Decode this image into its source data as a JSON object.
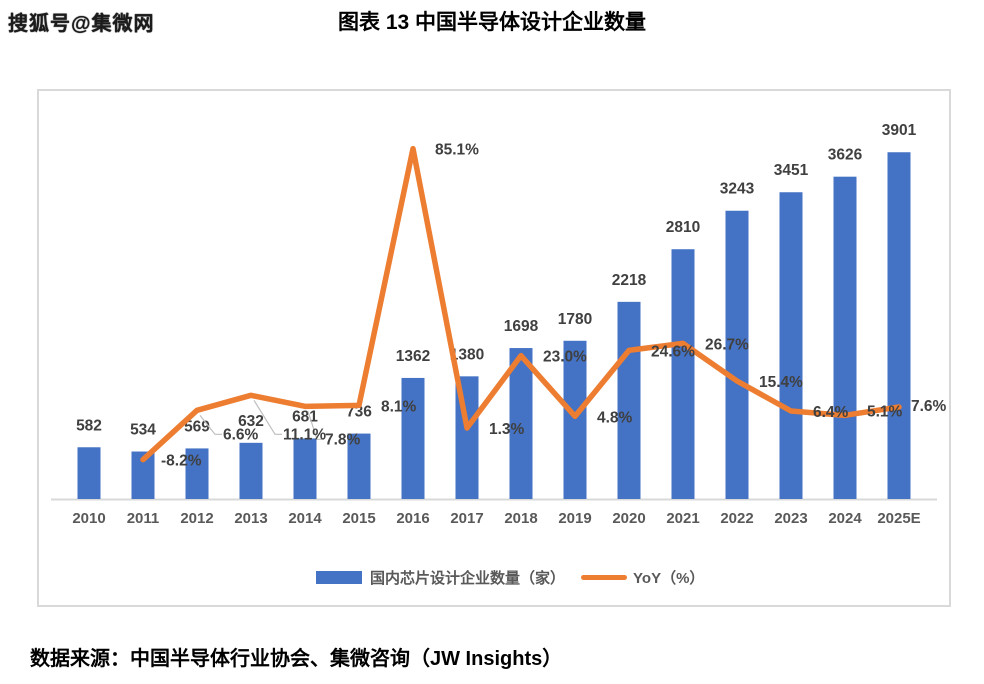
{
  "watermark": "搜狐号@集微网",
  "title": "图表 13 中国半导体设计企业数量",
  "source": "数据来源：中国半导体行业协会、集微咨询（JW Insights）",
  "legend": {
    "bar_label": "国内芯片设计企业数量（家）",
    "line_label": "YoY（%）"
  },
  "colors": {
    "bar": "#4472C4",
    "line": "#ED7D31",
    "axis": "#D9D9D9",
    "border": "#D9D9D9",
    "data_label": "#404040",
    "tick_label": "#595959",
    "leader": "#BFBFBF"
  },
  "chart_data": {
    "type": "combo-bar-line",
    "title": "图表 13 中国半导体设计企业数量",
    "categories": [
      "2010",
      "2011",
      "2012",
      "2013",
      "2014",
      "2015",
      "2016",
      "2017",
      "2018",
      "2019",
      "2020",
      "2021",
      "2022",
      "2023",
      "2024",
      "2025E"
    ],
    "series": [
      {
        "name": "国内芯片设计企业数量（家）",
        "type": "bar",
        "axis": "primary",
        "values": [
          582,
          534,
          569,
          632,
          681,
          736,
          1362,
          1380,
          1698,
          1780,
          2218,
          2810,
          3243,
          3451,
          3626,
          3901
        ],
        "labels": [
          "582",
          "534",
          "569",
          "632",
          "681",
          "736",
          "1362",
          "1380",
          "1698",
          "1780",
          "2218",
          "2810",
          "3243",
          "3451",
          "3626",
          "3901"
        ]
      },
      {
        "name": "YoY（%）",
        "type": "line",
        "axis": "secondary",
        "values": [
          null,
          -8.2,
          6.6,
          11.1,
          7.8,
          8.1,
          85.1,
          1.3,
          23.0,
          4.8,
          24.6,
          26.7,
          15.4,
          6.4,
          5.1,
          7.6
        ],
        "labels": [
          "",
          "-8.2%",
          "6.6%",
          "11.1%",
          "7.8%",
          "8.1%",
          "85.1%",
          "1.3%",
          "23.0%",
          "4.8%",
          "24.6%",
          "26.7%",
          "15.4%",
          "6.4%",
          "5.1%",
          "7.6%"
        ]
      }
    ],
    "ylim_primary": [
      0,
      4500
    ],
    "ylim_secondary": [
      -20,
      100
    ],
    "grid": false,
    "legend_position": "bottom",
    "yoy_label_offsets": {
      "1": [
        18,
        6
      ],
      "2": [
        26,
        29
      ],
      "3": [
        32,
        44
      ],
      "4": [
        20,
        38
      ],
      "14": [
        22,
        1
      ],
      "15": [
        12,
        4
      ]
    },
    "leader_indices": [
      2,
      3,
      4
    ]
  }
}
